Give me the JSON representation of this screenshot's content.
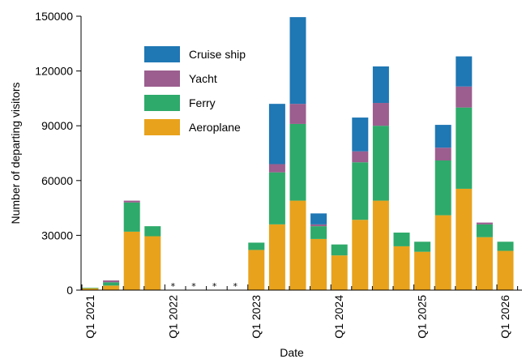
{
  "chart_data": {
    "type": "bar",
    "stacked": true,
    "ylabel": "Number of departing visitors",
    "xlabel": "Date",
    "ylim": [
      0,
      150000
    ],
    "yticks": [
      0,
      30000,
      60000,
      90000,
      120000,
      150000
    ],
    "categories": [
      "Q1 2021",
      "Q2 2021",
      "Q3 2021",
      "Q4 2021",
      "Q1 2022",
      "Q2 2022",
      "Q3 2022",
      "Q4 2022",
      "Q1 2023",
      "Q2 2023",
      "Q3 2023",
      "Q4 2023",
      "Q1 2024",
      "Q2 2024",
      "Q3 2024",
      "Q4 2024",
      "Q1 2025",
      "Q2 2025",
      "Q3 2025",
      "Q4 2025",
      "Q1 2026"
    ],
    "xtick_labels": [
      "Q1 2021",
      "Q1 2022",
      "Q1 2023",
      "Q1 2024",
      "Q1 2025",
      "Q1 2026"
    ],
    "missing_marker": "*",
    "missing_categories": [
      "Q1 2022",
      "Q2 2022",
      "Q3 2022",
      "Q4 2022"
    ],
    "series": [
      {
        "name": "Aeroplane",
        "color": "#E8A21C",
        "values": [
          1000,
          2500,
          32000,
          29500,
          0,
          0,
          0,
          0,
          22000,
          36000,
          49000,
          28000,
          19000,
          38500,
          49000,
          24000,
          21000,
          41000,
          55500,
          29000,
          21500
        ]
      },
      {
        "name": "Ferry",
        "color": "#2EAA6A",
        "values": [
          300,
          1800,
          16000,
          5500,
          0,
          0,
          0,
          0,
          4000,
          28500,
          42000,
          7000,
          6000,
          31500,
          41000,
          7500,
          5500,
          30000,
          44500,
          7000,
          5000
        ]
      },
      {
        "name": "Yacht",
        "color": "#9B5E8E",
        "values": [
          0,
          1000,
          1000,
          0,
          0,
          0,
          0,
          0,
          0,
          4500,
          11000,
          1000,
          0,
          6000,
          12500,
          0,
          0,
          7000,
          11500,
          1000,
          0
        ]
      },
      {
        "name": "Cruise ship",
        "color": "#1F77B4",
        "values": [
          0,
          0,
          0,
          0,
          0,
          0,
          0,
          0,
          0,
          33000,
          47500,
          6000,
          0,
          18500,
          20000,
          0,
          0,
          12500,
          16500,
          0,
          0
        ]
      }
    ],
    "legend": {
      "placement": "top-left",
      "order": [
        "Cruise ship",
        "Yacht",
        "Ferry",
        "Aeroplane"
      ]
    },
    "grid": false
  }
}
